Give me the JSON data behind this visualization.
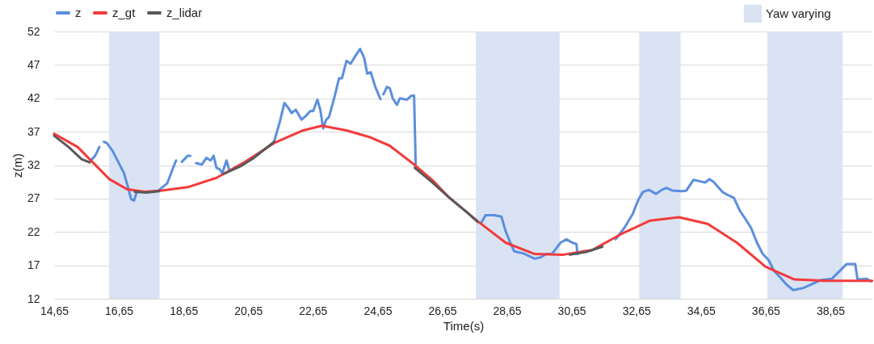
{
  "chart_data": {
    "type": "line",
    "xlabel": "Time(s)",
    "ylabel": "z(m)",
    "xlim": [
      14.65,
      39.95
    ],
    "ylim": [
      12,
      52
    ],
    "xticks": [
      {
        "value": 14.65,
        "label": "14,65"
      },
      {
        "value": 16.65,
        "label": "16,65"
      },
      {
        "value": 18.65,
        "label": "18,65"
      },
      {
        "value": 20.65,
        "label": "20,65"
      },
      {
        "value": 22.65,
        "label": "22,65"
      },
      {
        "value": 24.65,
        "label": "24,65"
      },
      {
        "value": 26.65,
        "label": "26,65"
      },
      {
        "value": 28.65,
        "label": "28,65"
      },
      {
        "value": 30.65,
        "label": "30,65"
      },
      {
        "value": 32.65,
        "label": "32,65"
      },
      {
        "value": 34.65,
        "label": "34,65"
      },
      {
        "value": 36.65,
        "label": "36,65"
      },
      {
        "value": 38.65,
        "label": "38,65"
      }
    ],
    "yticks": [
      12,
      17,
      22,
      27,
      32,
      37,
      42,
      47,
      52
    ],
    "grid": "y",
    "legend": "top left",
    "line_style": "solid",
    "marker": "none",
    "bands": [
      {
        "axis": "x",
        "from": 16.35,
        "to": 17.91,
        "label": "Yaw varying",
        "color": "#dae3f3"
      },
      {
        "axis": "x",
        "from": 27.69,
        "to": 30.28,
        "color": "#dae3f3"
      },
      {
        "axis": "x",
        "from": 32.74,
        "to": 34.02,
        "color": "#dae3f3"
      },
      {
        "axis": "x",
        "from": 36.7,
        "to": 39.03,
        "color": "#dae3f3"
      }
    ],
    "series": [
      {
        "name": "z",
        "color": "#5b8fdd",
        "x": [
          15.74,
          15.92,
          16.05,
          16.12,
          16.19,
          16.28,
          16.45,
          16.63,
          16.81,
          16.94,
          17.03,
          17.12,
          17.21,
          17.5,
          17.88,
          18.15,
          18.33,
          18.42,
          18.5,
          18.6,
          18.78,
          18.86,
          18.95,
          19.04,
          19.22,
          19.36,
          19.49,
          19.58,
          19.67,
          19.76,
          19.85,
          19.98,
          20.07,
          20.8,
          21.45,
          21.63,
          21.77,
          21.9,
          21.99,
          22.12,
          22.3,
          22.44,
          22.57,
          22.66,
          22.79,
          22.88,
          22.97,
          23.06,
          23.15,
          23.33,
          23.46,
          23.55,
          23.69,
          23.82,
          23.96,
          24.11,
          24.24,
          24.33,
          24.44,
          24.58,
          24.74,
          24.78,
          24.83,
          24.94,
          25.03,
          25.12,
          25.25,
          25.34,
          25.56,
          25.7,
          25.78,
          25.83,
          26.8,
          27.86,
          27.99,
          28.26,
          28.48,
          28.61,
          28.79,
          28.88,
          29.15,
          29.51,
          29.69,
          29.86,
          30.04,
          30.31,
          30.49,
          30.67,
          30.8,
          30.83,
          31.4,
          32.01,
          32.28,
          32.54,
          32.72,
          32.86,
          33.04,
          33.26,
          33.44,
          33.58,
          33.76,
          34.06,
          34.2,
          34.42,
          34.6,
          34.78,
          34.91,
          35.04,
          35.31,
          35.49,
          35.67,
          35.85,
          36.03,
          36.2,
          36.38,
          36.56,
          36.74,
          36.92,
          37.1,
          37.28,
          37.5,
          37.81,
          38.08,
          38.35,
          38.7,
          38.97,
          39.15,
          39.42,
          39.49,
          39.78,
          39.91
        ],
        "values": [
          32.5,
          33.4,
          34.7,
          null,
          35.5,
          35.3,
          34.2,
          32.5,
          30.8,
          28.6,
          26.9,
          26.7,
          28.0,
          null,
          28.2,
          29.3,
          31.6,
          32.7,
          null,
          32.5,
          33.4,
          33.4,
          null,
          32.3,
          32.1,
          33.1,
          32.7,
          33.4,
          31.6,
          31.4,
          30.8,
          32.7,
          31.2,
          null,
          35.5,
          38.5,
          41.3,
          40.5,
          39.8,
          40.3,
          38.8,
          39.4,
          40.1,
          40.1,
          41.8,
          40.3,
          37.5,
          38.8,
          39.2,
          42.4,
          45.0,
          45.0,
          47.6,
          47.2,
          48.3,
          49.4,
          48.0,
          45.7,
          45.9,
          43.7,
          41.9,
          null,
          42.6,
          43.7,
          43.5,
          42.0,
          41.0,
          42.0,
          41.8,
          42.4,
          42.4,
          32.1,
          null,
          23.4,
          24.5,
          24.5,
          24.3,
          22.1,
          20.0,
          19.1,
          18.8,
          18.0,
          18.2,
          18.7,
          18.7,
          20.4,
          20.9,
          20.4,
          20.2,
          18.7,
          null,
          20.9,
          22.6,
          24.7,
          26.9,
          28.0,
          28.3,
          27.7,
          28.3,
          28.6,
          28.2,
          28.1,
          28.2,
          29.8,
          29.6,
          29.4,
          29.9,
          29.5,
          28.0,
          27.5,
          27.1,
          25.2,
          23.9,
          22.6,
          20.4,
          18.7,
          17.8,
          16.1,
          15.2,
          14.2,
          13.3,
          13.6,
          14.2,
          14.8,
          15.0,
          16.3,
          17.2,
          17.2,
          14.9,
          15.0,
          14.6
        ]
      },
      {
        "name": "z_gt",
        "color": "#f23b3b",
        "x": [
          14.65,
          15.38,
          15.83,
          16.36,
          16.9,
          17.44,
          17.97,
          18.78,
          19.67,
          20.56,
          21.45,
          22.35,
          22.93,
          23.69,
          24.4,
          25.03,
          25.78,
          26.36,
          26.83,
          27.72,
          28.61,
          29.51,
          30.4,
          31.29,
          32.19,
          33.08,
          33.97,
          34.86,
          35.76,
          36.65,
          37.54,
          38.44,
          39.94
        ],
        "values": [
          36.7,
          34.7,
          32.5,
          29.9,
          28.4,
          28.0,
          28.2,
          28.7,
          30.1,
          32.5,
          35.3,
          37.2,
          37.9,
          37.2,
          36.2,
          34.9,
          32.1,
          29.7,
          27.3,
          23.7,
          20.4,
          18.7,
          18.6,
          19.3,
          21.7,
          23.7,
          24.2,
          23.2,
          20.4,
          16.8,
          14.9,
          14.7,
          14.7
        ]
      },
      {
        "name": "z_lidar",
        "color": "#595959",
        "x": [
          14.65,
          15.1,
          15.5,
          15.75,
          16.5,
          17.15,
          17.5,
          17.9,
          18.9,
          19.9,
          20.4,
          20.8,
          21.3,
          21.45,
          23.5,
          25.8,
          26.3,
          26.9,
          27.4,
          27.75,
          29.0,
          30.6,
          31.1,
          31.6
        ],
        "values": [
          36.4,
          34.7,
          32.9,
          32.4,
          null,
          28.0,
          27.9,
          28.1,
          null,
          30.7,
          31.8,
          33.0,
          34.9,
          35.5,
          null,
          31.6,
          29.6,
          27.0,
          25.0,
          23.5,
          null,
          18.6,
          19.0,
          19.8
        ]
      }
    ]
  }
}
